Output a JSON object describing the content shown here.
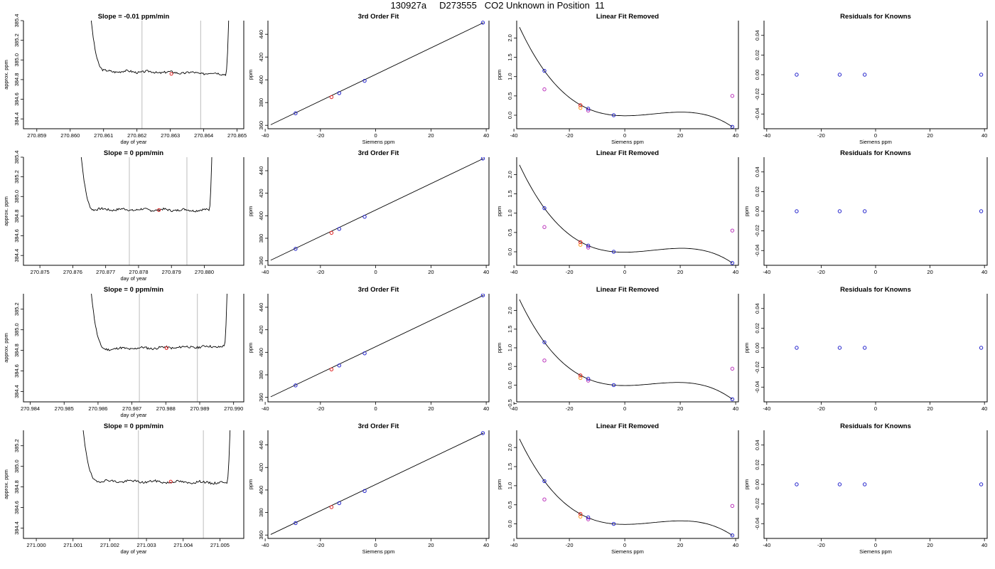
{
  "header": {
    "title": "130927a     D273555   CO2 Unknown in Position  11"
  },
  "colors": {
    "known": "#2222cc",
    "unknown": "#e02020",
    "adjusted": "#bb33bb",
    "reference": "#ff9922",
    "window_line": "#c8c8c8",
    "trace": "#000000"
  },
  "chart_data": [
    {
      "type": "line",
      "row": 0,
      "title": "Slope =  -0.01  ppm/min",
      "xlabel": "day of year",
      "ylabel": "approx. ppm",
      "xlim": [
        270.8586,
        270.8652
      ],
      "ylim": [
        384.3,
        385.4
      ],
      "xticks": [
        "270.859",
        "270.860",
        "270.861",
        "270.862",
        "270.863",
        "270.864",
        "270.865"
      ],
      "yticks": [
        "384.4",
        "384.6",
        "384.8",
        "385.0",
        "385.2",
        "385.4"
      ],
      "window": [
        270.86215,
        270.86391
      ],
      "start": 270.86055,
      "end": 270.86477,
      "plateau": [
        384.89,
        384.86
      ],
      "marker": {
        "x": 270.86303,
        "y": 384.858
      },
      "seed": 3
    },
    {
      "type": "scatter",
      "row": 0,
      "title": "3rd Order Fit",
      "xlabel": "Siemens ppm",
      "ylabel": "ppm",
      "xlim": [
        -39,
        41
      ],
      "ylim": [
        357,
        452
      ],
      "xticks": [
        "-40",
        "-20",
        "0",
        "20",
        "40"
      ],
      "yticks": [
        "360",
        "380",
        "400",
        "420",
        "440"
      ],
      "line": [
        [
          -38,
          360.5
        ],
        [
          39,
          450.2
        ]
      ],
      "known": [
        [
          -29,
          370.6
        ],
        [
          -13.2,
          388.3
        ],
        [
          -4,
          399.1
        ],
        [
          38.8,
          450.2
        ]
      ],
      "unknown": [
        [
          -16,
          384.8
        ]
      ]
    },
    {
      "type": "scatter",
      "row": 0,
      "title": "Linear Fit Removed",
      "xlabel": "Siemens ppm",
      "ylabel": "ppm",
      "xlim": [
        -39,
        41
      ],
      "ylim": [
        -0.35,
        2.45
      ],
      "xticks": [
        "-40",
        "-20",
        "0",
        "20",
        "40"
      ],
      "yticks": [
        "0.0",
        "0.5",
        "1.0",
        "1.5",
        "2.0"
      ],
      "curve": {
        "x0": -38,
        "x1": 38.8,
        "anchors": [
          [
            -29,
            1.15
          ],
          [
            -4,
            0.0
          ],
          [
            20,
            0.08
          ],
          [
            38.8,
            -0.3
          ]
        ]
      },
      "known": [
        [
          -29,
          1.15
        ],
        [
          -13.2,
          0.17
        ],
        [
          -4,
          0.0
        ],
        [
          38.8,
          -0.3
        ]
      ],
      "unknown": [
        [
          -16,
          0.26
        ]
      ],
      "adjusted": [
        [
          -29,
          0.67
        ],
        [
          -13.2,
          0.12
        ],
        [
          38.8,
          0.5
        ]
      ],
      "reference": [
        [
          -16,
          0.19
        ]
      ]
    },
    {
      "type": "scatter",
      "row": 0,
      "title": "Residuals for Knowns",
      "xlabel": "Siemens ppm",
      "ylabel": "",
      "xlim": [
        -41,
        41
      ],
      "ylim": [
        -0.055,
        0.055
      ],
      "xticks": [
        "-40",
        "-20",
        "0",
        "20",
        "40"
      ],
      "yticks": [
        "-0.04",
        "-0.02",
        "0.00",
        "0.02",
        "0.04"
      ],
      "known": [
        [
          -29,
          0
        ],
        [
          -13.2,
          0
        ],
        [
          -4,
          0
        ],
        [
          38.8,
          0
        ]
      ]
    },
    {
      "type": "line",
      "row": 1,
      "title": "Slope =  0  ppm/min",
      "xlabel": "day of year",
      "ylabel": "approx. ppm",
      "xlim": [
        270.8745,
        270.8812
      ],
      "ylim": [
        384.3,
        385.4
      ],
      "xticks": [
        "270.875",
        "270.876",
        "270.877",
        "270.878",
        "270.879",
        "270.880"
      ],
      "yticks": [
        "384.4",
        "384.6",
        "384.8",
        "385.0",
        "385.2",
        "385.4"
      ],
      "window": [
        270.87772,
        270.87947
      ],
      "start": 270.87618,
      "end": 270.88025,
      "plateau": [
        384.87,
        384.86
      ],
      "marker": {
        "x": 270.87862,
        "y": 384.862
      },
      "seed": 7
    },
    {
      "type": "scatter",
      "row": 1,
      "title": "3rd Order Fit",
      "xlabel": "",
      "ylabel": "ppm",
      "xlim": [
        -39,
        41
      ],
      "ylim": [
        356,
        452
      ],
      "xticks": [
        "-40",
        "-20",
        "0",
        "20",
        "40"
      ],
      "yticks": [
        "360",
        "380",
        "400",
        "420",
        "440"
      ],
      "line": [
        [
          -38,
          360.5
        ],
        [
          39,
          450.8
        ]
      ],
      "known": [
        [
          -29,
          370.6
        ],
        [
          -13.2,
          388.3
        ],
        [
          -4,
          399.1
        ],
        [
          38.8,
          450.8
        ]
      ],
      "unknown": [
        [
          -16,
          384.8
        ]
      ]
    },
    {
      "type": "scatter",
      "row": 1,
      "title": "Linear Fit Removed",
      "xlabel": "",
      "ylabel": "ppm",
      "xlim": [
        -39,
        41
      ],
      "ylim": [
        -0.35,
        2.45
      ],
      "xticks": [
        "-40",
        "-20",
        "0",
        "20",
        "40"
      ],
      "yticks": [
        "0.0",
        "0.5",
        "1.0",
        "1.5",
        "2.0"
      ],
      "curve": {
        "x0": -38,
        "x1": 38.8,
        "anchors": [
          [
            -29,
            1.13
          ],
          [
            -4,
            0.0
          ],
          [
            20,
            0.09
          ],
          [
            38.8,
            -0.29
          ]
        ]
      },
      "known": [
        [
          -29,
          1.13
        ],
        [
          -13.2,
          0.16
        ],
        [
          -4,
          0.0
        ],
        [
          38.8,
          -0.29
        ]
      ],
      "unknown": [
        [
          -16,
          0.25
        ]
      ],
      "adjusted": [
        [
          -29,
          0.64
        ],
        [
          -13.2,
          0.11
        ],
        [
          38.8,
          0.55
        ]
      ],
      "reference": [
        [
          -16,
          0.18
        ]
      ]
    },
    {
      "type": "scatter",
      "row": 1,
      "title": "Residuals for Knowns",
      "xlabel": "",
      "ylabel": "ppm",
      "xlim": [
        -41,
        41
      ],
      "ylim": [
        -0.055,
        0.055
      ],
      "xticks": [
        "-40",
        "-20",
        "0",
        "20",
        "40"
      ],
      "yticks": [
        "-0.04",
        "-0.02",
        "0.00",
        "0.02",
        "0.04"
      ],
      "known": [
        [
          -29,
          0
        ],
        [
          -13.2,
          0
        ],
        [
          -4,
          0
        ],
        [
          38.8,
          0
        ]
      ]
    },
    {
      "type": "line",
      "row": 2,
      "title": "Slope =  0  ppm/min",
      "xlabel": "day of year",
      "ylabel": "approx. ppm",
      "xlim": [
        270.9838,
        270.9903
      ],
      "ylim": [
        384.3,
        385.35
      ],
      "xticks": [
        "270.984",
        "270.985",
        "270.986",
        "270.987",
        "270.988",
        "270.989",
        "270.990"
      ],
      "yticks": [
        "384.4",
        "384.6",
        "384.8",
        "385.0",
        "385.2"
      ],
      "window": [
        270.98722,
        270.98893
      ],
      "start": 270.98573,
      "end": 270.98983,
      "plateau": [
        384.81,
        384.84
      ],
      "marker": {
        "x": 270.98802,
        "y": 384.822
      },
      "seed": 11
    },
    {
      "type": "scatter",
      "row": 2,
      "title": "3rd Order Fit",
      "xlabel": "",
      "ylabel": "ppm",
      "xlim": [
        -39,
        41
      ],
      "ylim": [
        356,
        452
      ],
      "xticks": [
        "-40",
        "-20",
        "0",
        "20",
        "40"
      ],
      "yticks": [
        "360",
        "380",
        "400",
        "420",
        "440"
      ],
      "line": [
        [
          -38,
          360.5
        ],
        [
          39,
          450.6
        ]
      ],
      "known": [
        [
          -29,
          370.6
        ],
        [
          -13.2,
          388.3
        ],
        [
          -4,
          399.1
        ],
        [
          38.8,
          450.6
        ]
      ],
      "unknown": [
        [
          -16,
          384.8
        ]
      ]
    },
    {
      "type": "scatter",
      "row": 2,
      "title": "Linear Fit Removed",
      "xlabel": "",
      "ylabel": "ppm",
      "xlim": [
        -39,
        41
      ],
      "ylim": [
        -0.45,
        2.45
      ],
      "xticks": [
        "-40",
        "-20",
        "0",
        "20",
        "40"
      ],
      "yticks": [
        "-0.5",
        "0.0",
        "0.5",
        "1.0",
        "1.5",
        "2.0"
      ],
      "curve": {
        "x0": -38,
        "x1": 38.8,
        "anchors": [
          [
            -29,
            1.15
          ],
          [
            -4,
            0.0
          ],
          [
            20,
            0.07
          ],
          [
            38.8,
            -0.38
          ]
        ]
      },
      "known": [
        [
          -29,
          1.15
        ],
        [
          -13.2,
          0.17
        ],
        [
          -4,
          0.0
        ],
        [
          38.8,
          -0.38
        ]
      ],
      "unknown": [
        [
          -16,
          0.26
        ]
      ],
      "adjusted": [
        [
          -29,
          0.66
        ],
        [
          -13.2,
          0.12
        ],
        [
          38.8,
          0.44
        ]
      ],
      "reference": [
        [
          -16,
          0.19
        ]
      ]
    },
    {
      "type": "scatter",
      "row": 2,
      "title": "Residuals for Knowns",
      "xlabel": "",
      "ylabel": "ppm",
      "xlim": [
        -41,
        41
      ],
      "ylim": [
        -0.055,
        0.055
      ],
      "xticks": [
        "-40",
        "-20",
        "0",
        "20",
        "40"
      ],
      "yticks": [
        "-0.04",
        "-0.02",
        "0.00",
        "0.02",
        "0.04"
      ],
      "known": [
        [
          -29,
          0
        ],
        [
          -13.2,
          0
        ],
        [
          -4,
          0
        ],
        [
          38.8,
          0
        ]
      ]
    },
    {
      "type": "line",
      "row": 3,
      "title": "Slope =  0  ppm/min",
      "xlabel": "day of year",
      "ylabel": "approx. ppm",
      "xlim": [
        270.99965,
        271.00565
      ],
      "ylim": [
        384.3,
        385.35
      ],
      "xticks": [
        "271.000",
        "271.001",
        "271.002",
        "271.003",
        "271.004",
        "271.005"
      ],
      "yticks": [
        "384.4",
        "384.6",
        "384.8",
        "385.0",
        "385.2"
      ],
      "window": [
        271.00278,
        271.00455
      ],
      "start": 271.00119,
      "end": 271.0053,
      "plateau": [
        384.86,
        384.84
      ],
      "marker": {
        "x": 271.00366,
        "y": 384.852
      },
      "seed": 19
    },
    {
      "type": "scatter",
      "row": 3,
      "title": "3rd Order Fit",
      "xlabel": "Siemens ppm",
      "ylabel": "ppm",
      "xlim": [
        -39,
        41
      ],
      "ylim": [
        357,
        453
      ],
      "xticks": [
        "-40",
        "-20",
        "0",
        "20",
        "40"
      ],
      "yticks": [
        "360",
        "380",
        "400",
        "420",
        "440"
      ],
      "line": [
        [
          -38,
          360.5
        ],
        [
          39,
          450.5
        ]
      ],
      "known": [
        [
          -29,
          370.6
        ],
        [
          -13.2,
          388.3
        ],
        [
          -4,
          399.1
        ],
        [
          38.8,
          450.5
        ]
      ],
      "unknown": [
        [
          -16,
          384.8
        ]
      ]
    },
    {
      "type": "scatter",
      "row": 3,
      "title": "Linear Fit Removed",
      "xlabel": "Siemens ppm",
      "ylabel": "ppm",
      "xlim": [
        -39,
        41
      ],
      "ylim": [
        -0.38,
        2.45
      ],
      "xticks": [
        "-40",
        "-20",
        "0",
        "20",
        "40"
      ],
      "yticks": [
        "0.0",
        "0.5",
        "1.0",
        "1.5",
        "2.0"
      ],
      "curve": {
        "x0": -38,
        "x1": 38.8,
        "anchors": [
          [
            -29,
            1.12
          ],
          [
            -4,
            0.0
          ],
          [
            20,
            0.08
          ],
          [
            38.8,
            -0.3
          ]
        ]
      },
      "known": [
        [
          -29,
          1.12
        ],
        [
          -13.2,
          0.17
        ],
        [
          -4,
          0.0
        ],
        [
          38.8,
          -0.3
        ]
      ],
      "unknown": [
        [
          -16,
          0.26
        ]
      ],
      "adjusted": [
        [
          -29,
          0.64
        ],
        [
          -13.2,
          0.12
        ],
        [
          38.8,
          0.47
        ]
      ],
      "reference": [
        [
          -16,
          0.19
        ]
      ]
    },
    {
      "type": "scatter",
      "row": 3,
      "title": "Residuals for Knowns",
      "xlabel": "Siemens ppm",
      "ylabel": "ppm",
      "xlim": [
        -41,
        41
      ],
      "ylim": [
        -0.055,
        0.055
      ],
      "xticks": [
        "-40",
        "-20",
        "0",
        "20",
        "40"
      ],
      "yticks": [
        "-0.04",
        "-0.02",
        "0.00",
        "0.02",
        "0.04"
      ],
      "known": [
        [
          -29,
          0
        ],
        [
          -13.2,
          0
        ],
        [
          -4,
          0
        ],
        [
          38.8,
          0
        ]
      ]
    }
  ]
}
